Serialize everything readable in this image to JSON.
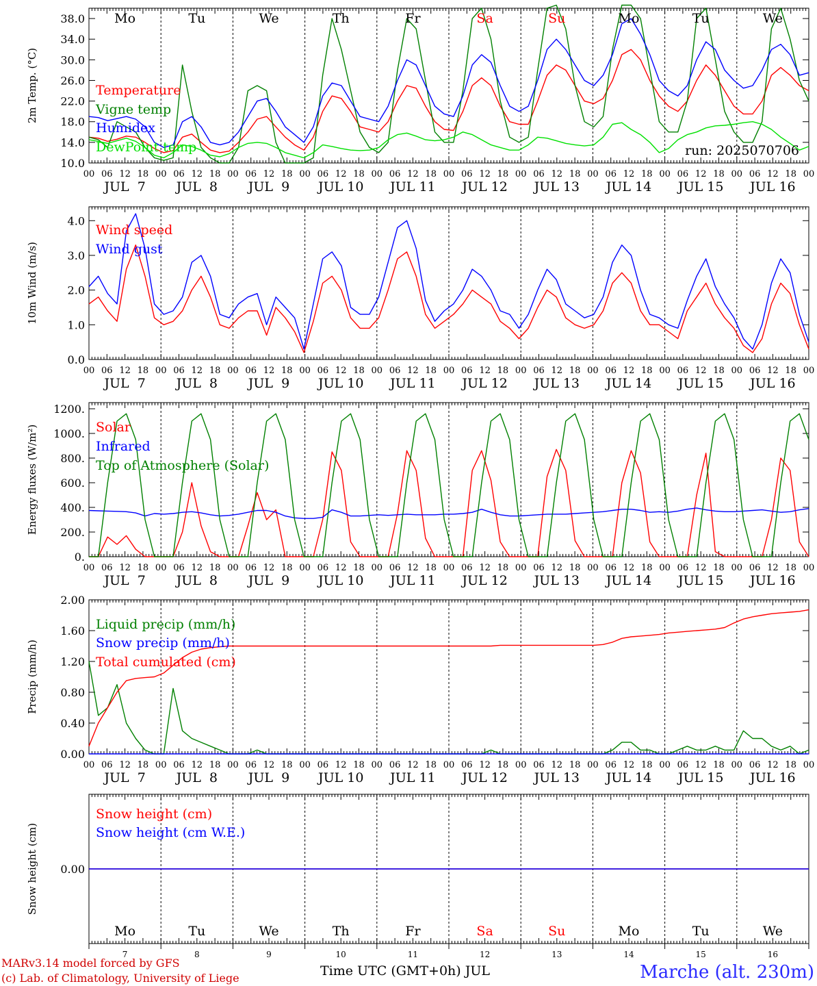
{
  "weekdays": [
    {
      "label": "Mo",
      "color": "#000000"
    },
    {
      "label": "Tu",
      "color": "#000000"
    },
    {
      "label": "We",
      "color": "#000000"
    },
    {
      "label": "Th",
      "color": "#000000"
    },
    {
      "label": "Fr",
      "color": "#000000"
    },
    {
      "label": "Sa",
      "color": "#ff0000"
    },
    {
      "label": "Su",
      "color": "#ff0000"
    },
    {
      "label": "Mo",
      "color": "#000000"
    },
    {
      "label": "Tu",
      "color": "#000000"
    },
    {
      "label": "We",
      "color": "#000000"
    }
  ],
  "date_labels": [
    "JUL  7",
    "JUL  8",
    "JUL  9",
    "JUL 10",
    "JUL 11",
    "JUL 12",
    "JUL 13",
    "JUL 14",
    "JUL 15",
    "JUL 16"
  ],
  "day_numbers": [
    "7",
    "8",
    "9",
    "10",
    "11",
    "12",
    "13",
    "14",
    "15",
    "16"
  ],
  "hour_labels": [
    "00",
    "06",
    "12",
    "18"
  ],
  "run_label": "run: 2025070706",
  "x_axis_title": "Time UTC (GMT+0h) JUL",
  "footer": {
    "model": "MARv3.14 model forced by GFS",
    "lab": "(c) Lab. of Climatology, University of Liege",
    "location": "Marche (alt. 230m)"
  },
  "colors": {
    "red": "#ff0000",
    "blue": "#0000ff",
    "darkgreen": "#008000",
    "lime": "#00e000"
  },
  "chart_data": [
    {
      "type": "line",
      "ylabel": "2m Temp. (°C)",
      "ylim": [
        10,
        40
      ],
      "yticks": [
        "10.0",
        "14.0",
        "18.0",
        "22.0",
        "26.0",
        "30.0",
        "34.0",
        "38.0"
      ],
      "x": "hours since JUL 7 00 UTC, 3-hourly",
      "series": [
        {
          "name": "Temperature",
          "color": "#ff0000",
          "values": [
            15,
            14.8,
            14.2,
            14.6,
            15.2,
            15,
            14,
            12.8,
            12,
            12.4,
            15,
            15.6,
            14,
            12.5,
            12,
            12.3,
            14,
            16,
            18.5,
            19,
            17,
            15,
            13.5,
            12.5,
            15,
            20,
            23,
            22.5,
            20,
            17,
            16.5,
            16,
            18,
            22,
            25,
            24.5,
            21,
            18,
            16.5,
            16.3,
            20,
            25,
            26.5,
            25,
            21,
            18,
            17.5,
            17.5,
            22,
            27,
            29,
            28,
            25,
            22,
            21.5,
            22.5,
            26,
            31,
            32,
            30,
            26,
            23,
            21,
            20,
            22,
            26,
            29,
            27,
            24,
            21,
            19.5,
            19.5,
            22,
            27,
            28.5,
            27,
            25,
            24
          ]
        },
        {
          "name": "Vigne temp",
          "color": "#008000",
          "values": [
            15,
            14.5,
            13,
            18,
            17,
            16,
            13,
            11,
            10.5,
            11,
            29,
            20,
            13,
            11,
            10,
            9.5,
            13,
            24,
            25,
            24,
            14,
            9,
            8,
            8,
            11,
            27,
            38,
            32,
            24,
            16,
            13,
            12,
            14,
            28,
            38,
            36,
            26,
            16,
            14,
            14,
            24,
            38,
            40,
            34,
            22,
            15,
            14,
            15,
            28,
            40,
            41,
            36,
            25,
            18,
            17,
            19,
            32,
            41,
            42,
            38,
            28,
            18,
            16,
            16,
            22,
            38,
            40,
            30,
            20,
            16,
            14,
            14,
            18,
            36,
            40,
            34,
            26,
            22
          ]
        },
        {
          "name": "Humidex",
          "color": "#0000ff",
          "values": [
            19,
            18.8,
            18.2,
            18.6,
            19,
            18.5,
            17,
            14,
            13,
            13.5,
            18,
            19,
            17,
            14,
            13.5,
            14,
            16,
            19,
            22,
            22.5,
            20,
            17,
            15.5,
            14,
            17,
            23,
            25.5,
            25,
            22,
            19,
            18.5,
            18,
            21,
            26,
            30,
            29,
            25,
            21,
            19.5,
            19,
            23,
            29,
            31,
            29.5,
            25,
            21,
            20,
            21,
            26,
            32,
            34,
            32,
            29,
            26,
            25,
            27,
            31,
            37,
            38,
            35,
            31,
            26,
            24,
            23,
            25,
            30,
            33.5,
            32,
            28,
            26,
            24.5,
            25,
            28,
            32,
            33,
            31,
            27,
            27.5
          ]
        },
        {
          "name": "DewPoint temp",
          "color": "#00e000",
          "values": [
            14.5,
            14.2,
            13.8,
            14.3,
            14.8,
            14.2,
            13,
            11.5,
            11,
            12,
            13.5,
            13.2,
            12.5,
            11.5,
            11.2,
            11.8,
            13,
            13.8,
            14,
            13.8,
            13,
            12,
            11.5,
            11,
            12,
            13.5,
            13.2,
            12.8,
            12.5,
            12.4,
            12.5,
            13,
            14.5,
            15.5,
            15.8,
            15.2,
            14.5,
            14.3,
            14.5,
            15,
            16,
            15.5,
            14.5,
            13.5,
            13,
            12.5,
            12.5,
            13.5,
            15,
            14.8,
            14.3,
            13.8,
            13.5,
            13.3,
            13.5,
            15,
            17.5,
            17.8,
            16.5,
            15.5,
            14,
            12,
            12.8,
            14.5,
            15.5,
            16,
            16.8,
            17.2,
            17.3,
            17.5,
            17.8,
            18,
            17.5,
            16.5,
            15,
            13.8,
            12.5,
            13.2
          ]
        }
      ]
    },
    {
      "type": "line",
      "ylabel": "10m Wind (m/s)",
      "ylim": [
        0,
        4.4
      ],
      "yticks": [
        "0.0",
        "1.0",
        "2.0",
        "3.0",
        "4.0"
      ],
      "series": [
        {
          "name": "Wind speed",
          "color": "#ff0000",
          "values": [
            1.6,
            1.8,
            1.4,
            1.1,
            2.6,
            3.3,
            2.4,
            1.2,
            1,
            1.1,
            1.4,
            2,
            2.4,
            1.8,
            1,
            0.9,
            1.2,
            1.4,
            1.4,
            0.7,
            1.5,
            1.2,
            0.8,
            0.2,
            1.1,
            2.2,
            2.4,
            2,
            1.2,
            0.9,
            0.9,
            1.2,
            2,
            2.9,
            3.1,
            2.4,
            1.3,
            0.9,
            1.1,
            1.3,
            1.6,
            2,
            1.8,
            1.6,
            1.1,
            0.9,
            0.6,
            0.9,
            1.5,
            2,
            1.8,
            1.2,
            1,
            0.9,
            1,
            1.4,
            2.2,
            2.5,
            2.2,
            1.4,
            1,
            1,
            0.8,
            0.6,
            1.4,
            1.8,
            2.2,
            1.6,
            1.2,
            0.9,
            0.4,
            0.2,
            0.6,
            1.6,
            2.2,
            1.9,
            1,
            0.3
          ]
        },
        {
          "name": "Wind gust",
          "color": "#0000ff",
          "values": [
            2.1,
            2.4,
            1.9,
            1.6,
            3.7,
            4.2,
            3.2,
            1.6,
            1.3,
            1.4,
            1.8,
            2.8,
            3,
            2.4,
            1.3,
            1.2,
            1.6,
            1.8,
            1.9,
            1,
            1.8,
            1.5,
            1.2,
            0.3,
            1.6,
            2.9,
            3.1,
            2.7,
            1.5,
            1.3,
            1.3,
            1.8,
            2.8,
            3.8,
            4,
            3.2,
            1.7,
            1.1,
            1.4,
            1.6,
            2,
            2.6,
            2.4,
            2,
            1.4,
            1.3,
            0.9,
            1.3,
            2,
            2.6,
            2.3,
            1.6,
            1.4,
            1.2,
            1.3,
            1.8,
            2.8,
            3.3,
            3,
            2,
            1.3,
            1.2,
            1,
            0.9,
            1.7,
            2.4,
            2.9,
            2.1,
            1.6,
            1.2,
            0.6,
            0.3,
            1,
            2.2,
            2.9,
            2.5,
            1.3,
            0.5
          ]
        }
      ]
    },
    {
      "type": "line",
      "ylabel": "Energy fluxes (W/m²)",
      "ylim": [
        0,
        1250
      ],
      "yticks": [
        "0.",
        "200.",
        "400.",
        "600.",
        "800.",
        "1000.",
        "1200."
      ],
      "series": [
        {
          "name": "Solar",
          "color": "#ff0000",
          "values": [
            0,
            0,
            160,
            100,
            170,
            60,
            0,
            0,
            0,
            0,
            200,
            600,
            250,
            40,
            0,
            0,
            0,
            250,
            520,
            300,
            380,
            0,
            0,
            0,
            0,
            300,
            850,
            700,
            120,
            0,
            0,
            0,
            0,
            350,
            860,
            700,
            150,
            0,
            0,
            0,
            0,
            700,
            860,
            620,
            120,
            0,
            0,
            0,
            0,
            650,
            870,
            700,
            130,
            0,
            0,
            0,
            0,
            600,
            860,
            680,
            120,
            0,
            0,
            0,
            0,
            500,
            840,
            40,
            0,
            0,
            0,
            0,
            0,
            300,
            800,
            700,
            120,
            0
          ]
        },
        {
          "name": "Infrared",
          "color": "#0000ff",
          "values": [
            375,
            372,
            370,
            368,
            365,
            355,
            330,
            350,
            345,
            350,
            360,
            365,
            355,
            340,
            330,
            335,
            345,
            360,
            375,
            375,
            360,
            330,
            315,
            310,
            310,
            320,
            380,
            360,
            330,
            330,
            335,
            340,
            335,
            340,
            345,
            340,
            340,
            340,
            345,
            345,
            350,
            360,
            385,
            360,
            340,
            330,
            330,
            335,
            340,
            345,
            345,
            345,
            350,
            355,
            360,
            365,
            375,
            385,
            385,
            375,
            360,
            365,
            360,
            370,
            385,
            395,
            380,
            370,
            365,
            365,
            370,
            375,
            380,
            370,
            360,
            365,
            380,
            390
          ]
        },
        {
          "name": "Top of Atmosphere (Solar)",
          "color": "#008000",
          "values": [
            0,
            0,
            600,
            1100,
            1160,
            950,
            300,
            0,
            0,
            0,
            600,
            1100,
            1160,
            950,
            300,
            0,
            0,
            0,
            600,
            1100,
            1160,
            950,
            300,
            0,
            0,
            0,
            600,
            1100,
            1160,
            950,
            300,
            0,
            0,
            0,
            600,
            1100,
            1160,
            950,
            300,
            0,
            0,
            0,
            600,
            1100,
            1160,
            950,
            300,
            0,
            0,
            0,
            600,
            1100,
            1160,
            950,
            300,
            0,
            0,
            0,
            600,
            1100,
            1160,
            950,
            300,
            0,
            0,
            0,
            600,
            1100,
            1160,
            950,
            300,
            0,
            0,
            0,
            600,
            1100,
            1160,
            950
          ]
        }
      ]
    },
    {
      "type": "line",
      "ylabel": "Precip (mm/h)",
      "ylim": [
        0,
        2
      ],
      "yticks": [
        "0.00",
        "0.40",
        "0.80",
        "1.20",
        "1.60",
        "2.00"
      ],
      "series": [
        {
          "name": "Liquid precip (mm/h)",
          "color": "#008000",
          "values": [
            1.2,
            0.5,
            0.6,
            0.9,
            0.4,
            0.2,
            0.05,
            0,
            0,
            0.85,
            0.3,
            0.2,
            0.15,
            0.1,
            0.05,
            0,
            0,
            0,
            0.05,
            0,
            0,
            0,
            0,
            0,
            0,
            0,
            0,
            0,
            0,
            0,
            0,
            0,
            0,
            0,
            0,
            0,
            0,
            0,
            0,
            0,
            0,
            0,
            0,
            0.05,
            0,
            0,
            0,
            0,
            0,
            0,
            0,
            0,
            0,
            0,
            0,
            0,
            0.05,
            0.15,
            0.15,
            0.05,
            0.05,
            0,
            0,
            0.05,
            0.1,
            0.05,
            0.05,
            0.1,
            0.05,
            0.05,
            0.3,
            0.2,
            0.2,
            0.1,
            0.05,
            0.1,
            0,
            0.05
          ]
        },
        {
          "name": "Snow precip (mm/h)",
          "color": "#0000ff",
          "values": [
            0,
            0,
            0,
            0,
            0,
            0,
            0,
            0,
            0,
            0,
            0,
            0,
            0,
            0,
            0,
            0,
            0,
            0,
            0,
            0,
            0,
            0,
            0,
            0,
            0,
            0,
            0,
            0,
            0,
            0,
            0,
            0,
            0,
            0,
            0,
            0,
            0,
            0,
            0,
            0,
            0,
            0,
            0,
            0,
            0,
            0,
            0,
            0,
            0,
            0,
            0,
            0,
            0,
            0,
            0,
            0,
            0,
            0,
            0,
            0,
            0,
            0,
            0,
            0,
            0,
            0,
            0,
            0,
            0,
            0,
            0,
            0,
            0,
            0,
            0,
            0,
            0,
            0
          ]
        },
        {
          "name": "Total cumulated (cm)",
          "color": "#ff0000",
          "values": [
            0.1,
            0.4,
            0.6,
            0.8,
            0.95,
            0.98,
            0.99,
            1,
            1.05,
            1.15,
            1.25,
            1.32,
            1.36,
            1.38,
            1.39,
            1.4,
            1.4,
            1.4,
            1.4,
            1.4,
            1.4,
            1.4,
            1.4,
            1.4,
            1.4,
            1.4,
            1.4,
            1.4,
            1.4,
            1.4,
            1.4,
            1.4,
            1.4,
            1.4,
            1.4,
            1.4,
            1.4,
            1.4,
            1.4,
            1.4,
            1.4,
            1.4,
            1.4,
            1.4,
            1.41,
            1.41,
            1.41,
            1.41,
            1.41,
            1.41,
            1.41,
            1.41,
            1.41,
            1.41,
            1.41,
            1.42,
            1.45,
            1.5,
            1.52,
            1.53,
            1.54,
            1.55,
            1.57,
            1.58,
            1.59,
            1.6,
            1.61,
            1.62,
            1.64,
            1.7,
            1.75,
            1.78,
            1.8,
            1.82,
            1.83,
            1.84,
            1.85,
            1.87
          ]
        }
      ]
    },
    {
      "type": "line",
      "ylabel": "Snow height (cm)",
      "ylim": [
        -1,
        1
      ],
      "yticks": [
        "0.00"
      ],
      "series": [
        {
          "name": "Snow height (cm)",
          "color": "#ff0000",
          "values": [
            0,
            0
          ]
        },
        {
          "name": "Snow height (cm W.E.)",
          "color": "#0000ff",
          "values": [
            0,
            0
          ]
        }
      ]
    }
  ]
}
